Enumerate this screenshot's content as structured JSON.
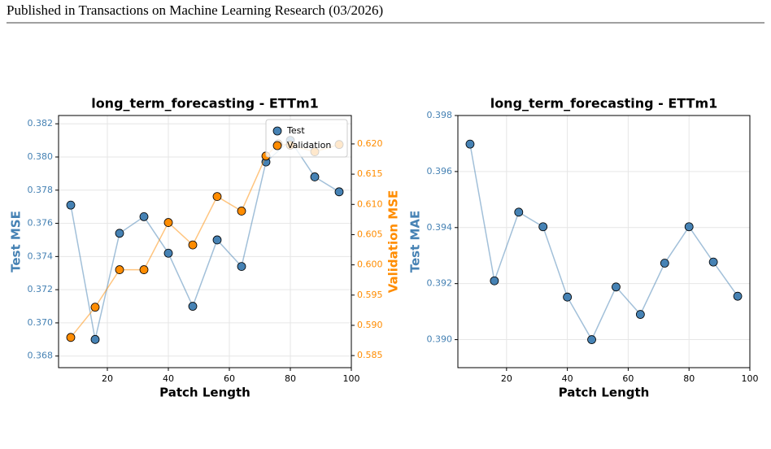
{
  "header": {
    "text": "Published in Transactions on Machine Learning Research (03/2026)"
  },
  "chart_data": [
    {
      "type": "line",
      "title": "long_term_forecasting - ETTm1",
      "x_label": "Patch Length",
      "y_label": "Test MSE",
      "y2_label": "Validation MSE",
      "x": [
        8,
        16,
        24,
        32,
        40,
        48,
        56,
        64,
        72,
        80,
        88,
        96
      ],
      "xlim": [
        4,
        100
      ],
      "xticks": [
        20,
        40,
        60,
        80,
        100
      ],
      "ylim": [
        0.3673,
        0.3825
      ],
      "yticks": [
        {
          "value": 0.368,
          "label": "0.368"
        },
        {
          "value": 0.37,
          "label": "0.370"
        },
        0.372,
        0.374,
        0.376,
        0.378,
        {
          "value": 0.38,
          "label": "0.380"
        },
        0.382
      ],
      "y2lim": [
        0.583,
        0.6247
      ],
      "y2ticks": [
        0.585,
        {
          "value": 0.59,
          "label": "0.590"
        },
        0.595,
        {
          "value": 0.6,
          "label": "0.600"
        },
        0.605,
        {
          "value": 0.61,
          "label": "0.610"
        },
        0.615,
        {
          "value": 0.62,
          "label": "0.620"
        }
      ],
      "grid": true,
      "legend": "upper right",
      "series": [
        {
          "name": "Test",
          "color": "#4682b4",
          "values": [
            0.3771,
            0.369,
            0.3754,
            0.3764,
            0.3742,
            0.371,
            0.375,
            0.3734,
            0.3797,
            0.381,
            0.3788,
            0.3779
          ]
        },
        {
          "name": "Validation",
          "color": "#ff8c00",
          "axis": "y2",
          "x": [
            8,
            16,
            24,
            32,
            40,
            48,
            56,
            64,
            72,
            76,
            80,
            88,
            96
          ],
          "values": [
            0.588,
            0.593,
            0.5992,
            0.5992,
            0.607,
            0.6033,
            0.6113,
            0.6089,
            0.618,
            0.62,
            0.6198,
            0.6187,
            0.6199
          ]
        }
      ]
    },
    {
      "type": "line",
      "title": "long_term_forecasting - ETTm1",
      "x_label": "Patch Length",
      "y_label": "Test MAE",
      "x": [
        8,
        16,
        24,
        32,
        40,
        48,
        56,
        64,
        72,
        80,
        88,
        96
      ],
      "xlim": [
        4,
        100
      ],
      "xticks": [
        20,
        40,
        60,
        80,
        100
      ],
      "ylim": [
        0.389,
        0.398
      ],
      "yticks": [
        {
          "value": 0.39,
          "label": "0.390"
        },
        0.392,
        0.394,
        0.396,
        0.398
      ],
      "grid": true,
      "series": [
        {
          "name": "Test",
          "color": "#4682b4",
          "values": [
            0.39698,
            0.3921,
            0.39455,
            0.39403,
            0.39152,
            0.39,
            0.39188,
            0.3909,
            0.39273,
            0.39403,
            0.39277,
            0.39155
          ]
        }
      ]
    }
  ]
}
